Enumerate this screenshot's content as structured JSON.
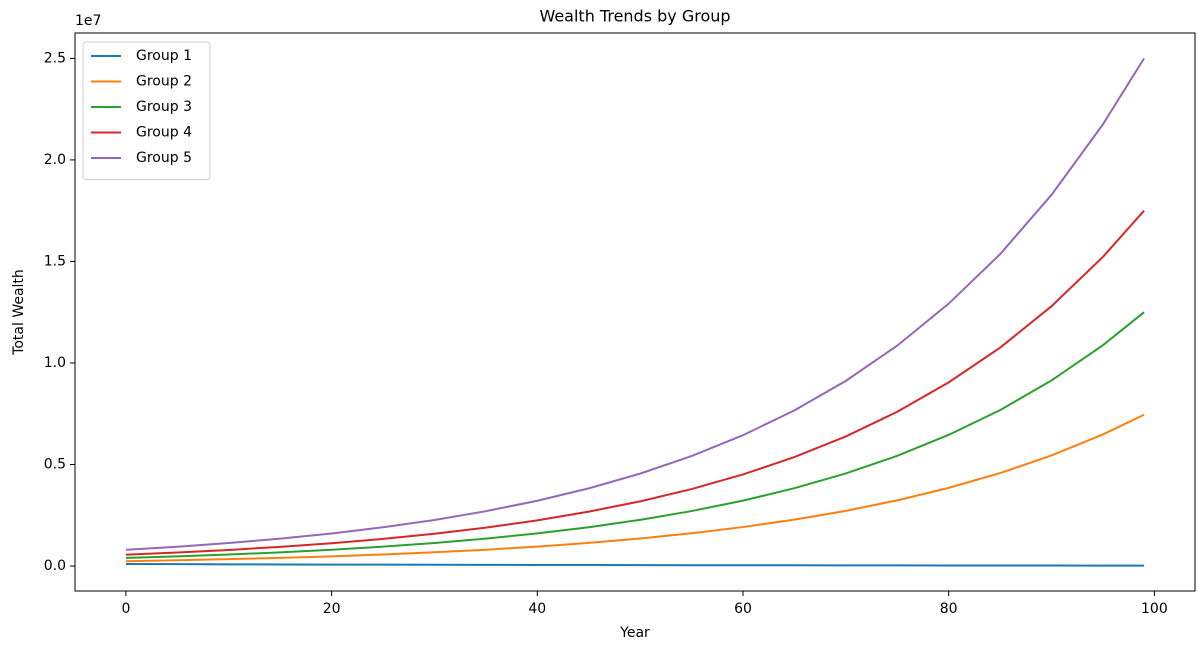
{
  "chart_data": {
    "type": "line",
    "title": "Wealth Trends by Group",
    "x_label": "Year",
    "y_label": "Total Wealth",
    "y_offset_label": "1e7",
    "x": [
      0,
      5,
      10,
      15,
      20,
      25,
      30,
      35,
      40,
      45,
      50,
      55,
      60,
      65,
      70,
      75,
      80,
      85,
      90,
      95,
      99
    ],
    "series": [
      {
        "name": "Group 1",
        "color": "#1f77b4",
        "values": [
          100000,
          92000,
          85000,
          78000,
          72000,
          67000,
          62000,
          57000,
          53000,
          49000,
          45000,
          42000,
          39000,
          36000,
          33000,
          31000,
          29000,
          27000,
          25000,
          23000,
          21000
        ]
      },
      {
        "name": "Group 2",
        "color": "#ff7f0e",
        "values": [
          238000,
          284000,
          338000,
          402000,
          478000,
          569000,
          677000,
          805000,
          958000,
          1140000,
          1357000,
          1613000,
          1920000,
          2285000,
          2718000,
          3235000,
          3850000,
          4577000,
          5447000,
          6482000,
          7450000
        ]
      },
      {
        "name": "Group 3",
        "color": "#2ca02c",
        "values": [
          400000,
          476000,
          566000,
          674000,
          802000,
          954000,
          1135000,
          1351000,
          1608000,
          1913000,
          2276000,
          2707000,
          3221000,
          3833000,
          4560000,
          5428000,
          6460000,
          7680000,
          9140000,
          10876000,
          12500000
        ]
      },
      {
        "name": "Group 4",
        "color": "#d62728",
        "values": [
          560000,
          666000,
          793000,
          944000,
          1122000,
          1336000,
          1589000,
          1891000,
          2251000,
          2678000,
          3186000,
          3790000,
          4510000,
          5366000,
          6384000,
          7599000,
          9044000,
          10752000,
          12796000,
          15226000,
          17500000
        ]
      },
      {
        "name": "Group 5",
        "color": "#9467bd",
        "values": [
          800000,
          952000,
          1133000,
          1348000,
          1603000,
          1908000,
          2270000,
          2702000,
          3215000,
          3826000,
          4552000,
          5414000,
          6442000,
          7666000,
          9120000,
          10856000,
          12920000,
          15360000,
          18280000,
          21752000,
          25000000
        ]
      }
    ],
    "xlim": [
      -4.95,
      103.95
    ],
    "xticks": [
      0,
      20,
      40,
      60,
      80,
      100
    ],
    "ylim": [
      -1229000,
      26250000
    ],
    "yticks": [
      {
        "value": 0,
        "label": "0.0"
      },
      {
        "value": 5000000,
        "label": "0.5"
      },
      {
        "value": 10000000,
        "label": "1.0"
      },
      {
        "value": 15000000,
        "label": "1.5"
      },
      {
        "value": 20000000,
        "label": "2.0"
      },
      {
        "value": 25000000,
        "label": "2.5"
      }
    ],
    "legend": "upper left",
    "grid": false
  }
}
